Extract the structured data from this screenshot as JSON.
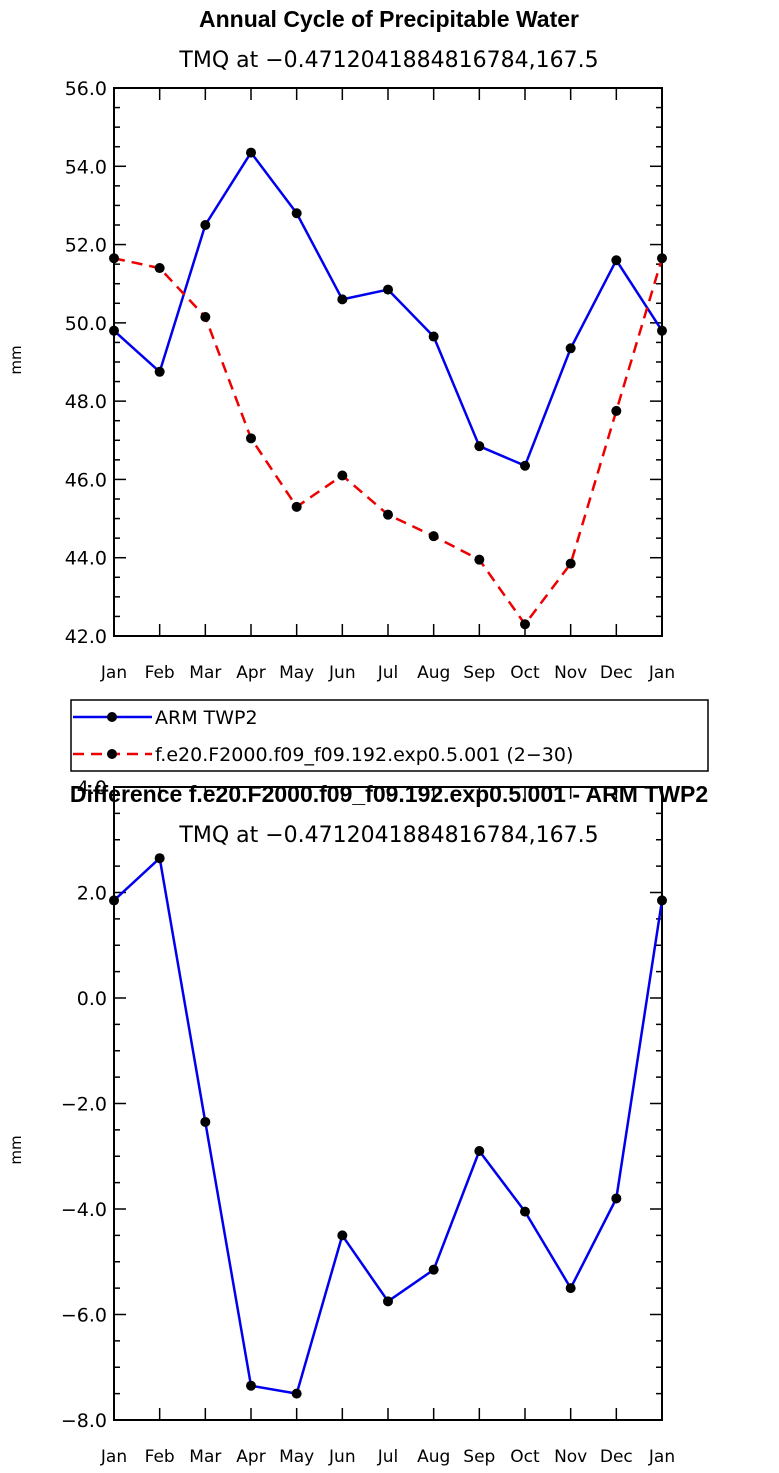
{
  "chart_data": [
    {
      "type": "line",
      "title": "Annual Cycle of Precipitable Water",
      "subtitle": "TMQ at −0.4712041884816784,167.5",
      "xlabel": "",
      "ylabel": "mm",
      "categories": [
        "Jan",
        "Feb",
        "Mar",
        "Apr",
        "May",
        "Jun",
        "Jul",
        "Aug",
        "Sep",
        "Oct",
        "Nov",
        "Dec",
        "Jan"
      ],
      "ylim": [
        42.0,
        56.0
      ],
      "yticks": [
        42.0,
        44.0,
        46.0,
        48.0,
        50.0,
        52.0,
        54.0,
        56.0
      ],
      "ytick_labels": [
        "42.0",
        "44.0",
        "46.0",
        "48.0",
        "50.0",
        "52.0",
        "54.0",
        "56.0"
      ],
      "series": [
        {
          "name": "ARM TWP2",
          "color": "#0000ee",
          "dash": "solid",
          "values": [
            49.8,
            48.75,
            52.5,
            54.35,
            52.8,
            50.6,
            50.85,
            49.65,
            46.85,
            46.35,
            49.35,
            51.6,
            49.8
          ]
        },
        {
          "name": "f.e20.F2000.f09_f09.192.exp0.5.001 (2−30)",
          "color": "#ee0000",
          "dash": "dashed",
          "values": [
            51.65,
            51.4,
            50.15,
            47.05,
            45.3,
            46.1,
            45.1,
            44.55,
            43.95,
            42.3,
            43.85,
            47.75,
            51.65
          ]
        }
      ],
      "legend": "bottom-left"
    },
    {
      "type": "line",
      "title": "Difference f.e20.F2000.f09_f09.192.exp0.5.001 - ARM TWP2",
      "subtitle": "TMQ at −0.4712041884816784,167.5",
      "xlabel": "",
      "ylabel": "mm",
      "categories": [
        "Jan",
        "Feb",
        "Mar",
        "Apr",
        "May",
        "Jun",
        "Jul",
        "Aug",
        "Sep",
        "Oct",
        "Nov",
        "Dec",
        "Jan"
      ],
      "ylim": [
        -8.0,
        4.0
      ],
      "yticks": [
        -8.0,
        -6.0,
        -4.0,
        -2.0,
        0.0,
        2.0,
        4.0
      ],
      "ytick_labels": [
        "−8.0",
        "−6.0",
        "−4.0",
        "−2.0",
        "0.0",
        "2.0",
        "4.0"
      ],
      "series": [
        {
          "name": "Difference",
          "color": "#0000ee",
          "dash": "solid",
          "values": [
            1.85,
            2.65,
            -2.35,
            -7.35,
            -7.5,
            -4.5,
            -5.75,
            -5.15,
            -2.9,
            -4.05,
            -5.5,
            -3.8,
            1.85
          ]
        }
      ]
    }
  ]
}
